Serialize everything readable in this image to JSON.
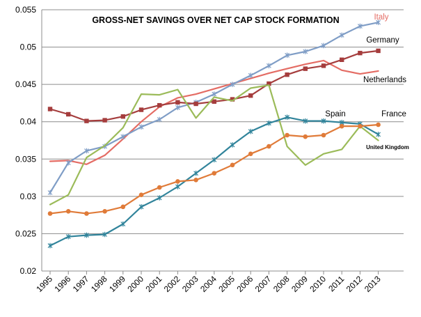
{
  "chart_data": {
    "type": "line",
    "title": "GROSS-NET SAVINGS OVER NET CAP STOCK FORMATION",
    "xlabel": "",
    "ylabel": "",
    "ylim": [
      0.02,
      0.055
    ],
    "yticks": [
      0.02,
      0.025,
      0.03,
      0.035,
      0.04,
      0.045,
      0.05,
      0.055
    ],
    "ytick_labels": [
      "0.02",
      "0.025",
      "0.03",
      "0.035",
      "0.04",
      "0.045",
      "0.05",
      "0.055"
    ],
    "x": [
      "1995",
      "1996",
      "1997",
      "1998",
      "1999",
      "2000",
      "2001",
      "2002",
      "2003",
      "2004",
      "2005",
      "2006",
      "2007",
      "2008",
      "2009",
      "2010",
      "2011",
      "2012",
      "2013"
    ],
    "grid": "horizontal",
    "series": [
      {
        "name": "Italy",
        "color": "#E46C64",
        "marker": "none",
        "values": [
          0.0347,
          0.0348,
          0.0343,
          0.0355,
          0.0377,
          0.04,
          0.042,
          0.0432,
          0.0437,
          0.0444,
          0.0451,
          0.0458,
          0.0465,
          0.0471,
          0.0477,
          0.0482,
          0.0469,
          0.0464,
          0.0468
        ]
      },
      {
        "name": "Germany",
        "color": "#7F9DC6",
        "marker": "star",
        "values": [
          0.0305,
          0.0345,
          0.0361,
          0.0367,
          0.038,
          0.0393,
          0.0403,
          0.0419,
          0.0426,
          0.0437,
          0.045,
          0.0462,
          0.0475,
          0.0489,
          0.0494,
          0.0502,
          0.0516,
          0.0528,
          0.0533
        ]
      },
      {
        "name": "Netherlands",
        "color": "#A53D3D",
        "marker": "square",
        "values": [
          0.0417,
          0.041,
          0.0401,
          0.0402,
          0.0407,
          0.0416,
          0.0422,
          0.0426,
          0.0424,
          0.0427,
          0.043,
          0.0435,
          0.0451,
          0.0463,
          0.0471,
          0.0475,
          0.0483,
          0.0492,
          0.0495
        ]
      },
      {
        "name": "United Kingdom",
        "color": "#9BBB59",
        "marker": "none",
        "values": [
          0.0289,
          0.0302,
          0.0352,
          0.0368,
          0.0392,
          0.0437,
          0.0436,
          0.0443,
          0.0405,
          0.0433,
          0.0428,
          0.0445,
          0.0449,
          0.0367,
          0.0342,
          0.0357,
          0.0363,
          0.0394,
          0.0375
        ]
      },
      {
        "name": "Spain",
        "color": "#31849B",
        "marker": "star",
        "values": [
          0.0234,
          0.0246,
          0.0248,
          0.0249,
          0.0263,
          0.0286,
          0.0298,
          0.0313,
          0.0331,
          0.0349,
          0.0369,
          0.0387,
          0.0398,
          0.0406,
          0.0401,
          0.0401,
          0.0399,
          0.0397,
          0.0383
        ]
      },
      {
        "name": "France",
        "color": "#E07B39",
        "marker": "circle",
        "values": [
          0.0277,
          0.028,
          0.0277,
          0.028,
          0.0286,
          0.0302,
          0.0312,
          0.032,
          0.0322,
          0.0331,
          0.0342,
          0.0357,
          0.0367,
          0.0382,
          0.038,
          0.0382,
          0.0394,
          0.0394,
          0.0396
        ]
      }
    ],
    "annotations": [
      {
        "text": "Italy",
        "color": "#E46C64"
      },
      {
        "text": "Germany",
        "color": "#000000"
      },
      {
        "text": "Netherlands",
        "color": "#000000"
      },
      {
        "text": "Spain",
        "color": "#000000"
      },
      {
        "text": "France",
        "color": "#000000"
      },
      {
        "text": "United Kingdom",
        "color": "#000000"
      }
    ]
  }
}
